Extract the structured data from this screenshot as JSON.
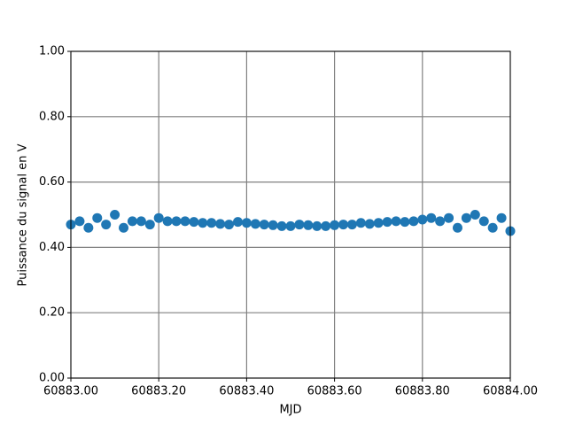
{
  "chart_data": {
    "type": "scatter",
    "x_label": "MJD",
    "y_label": "Puissance du signal en V",
    "x": [
      60883.0,
      60883.02,
      60883.04,
      60883.06,
      60883.08,
      60883.1,
      60883.12,
      60883.14,
      60883.16,
      60883.18,
      60883.2,
      60883.22,
      60883.24,
      60883.26,
      60883.28,
      60883.3,
      60883.32,
      60883.34,
      60883.36,
      60883.38,
      60883.4,
      60883.42,
      60883.44,
      60883.46,
      60883.48,
      60883.5,
      60883.52,
      60883.54,
      60883.56,
      60883.58,
      60883.6,
      60883.62,
      60883.64,
      60883.66,
      60883.68,
      60883.7,
      60883.72,
      60883.74,
      60883.76,
      60883.78,
      60883.8,
      60883.82,
      60883.84,
      60883.86,
      60883.88,
      60883.9,
      60883.92,
      60883.94,
      60883.96,
      60883.98,
      60884.0
    ],
    "values": [
      0.47,
      0.48,
      0.46,
      0.49,
      0.47,
      0.5,
      0.46,
      0.48,
      0.48,
      0.47,
      0.49,
      0.48,
      0.48,
      0.48,
      0.478,
      0.475,
      0.475,
      0.472,
      0.47,
      0.478,
      0.475,
      0.472,
      0.47,
      0.468,
      0.465,
      0.465,
      0.47,
      0.468,
      0.465,
      0.465,
      0.468,
      0.47,
      0.47,
      0.475,
      0.472,
      0.475,
      0.478,
      0.48,
      0.478,
      0.48,
      0.485,
      0.49,
      0.48,
      0.49,
      0.46,
      0.49,
      0.5,
      0.48,
      0.46,
      0.49,
      0.45
    ],
    "color": "#1f77b4",
    "xlim": [
      60883.0,
      60884.0
    ],
    "xticks": [
      {
        "value": 60883.0,
        "label": "60883.00"
      },
      {
        "value": 60883.2,
        "label": "60883.20"
      },
      {
        "value": 60883.4,
        "label": "60883.40"
      },
      {
        "value": 60883.6,
        "label": "60883.60"
      },
      {
        "value": 60883.8,
        "label": "60883.80"
      },
      {
        "value": 60884.0,
        "label": "60884.00"
      }
    ],
    "ylim": [
      0,
      1
    ],
    "yticks": [
      {
        "value": 0,
        "label": "0.00"
      },
      {
        "value": 0.2,
        "label": "0.20"
      },
      {
        "value": 0.4,
        "label": "0.40"
      },
      {
        "value": 0.6,
        "label": "0.60"
      },
      {
        "value": 0.8,
        "label": "0.80"
      },
      {
        "value": 1,
        "label": "1.00"
      }
    ],
    "grid": true
  }
}
